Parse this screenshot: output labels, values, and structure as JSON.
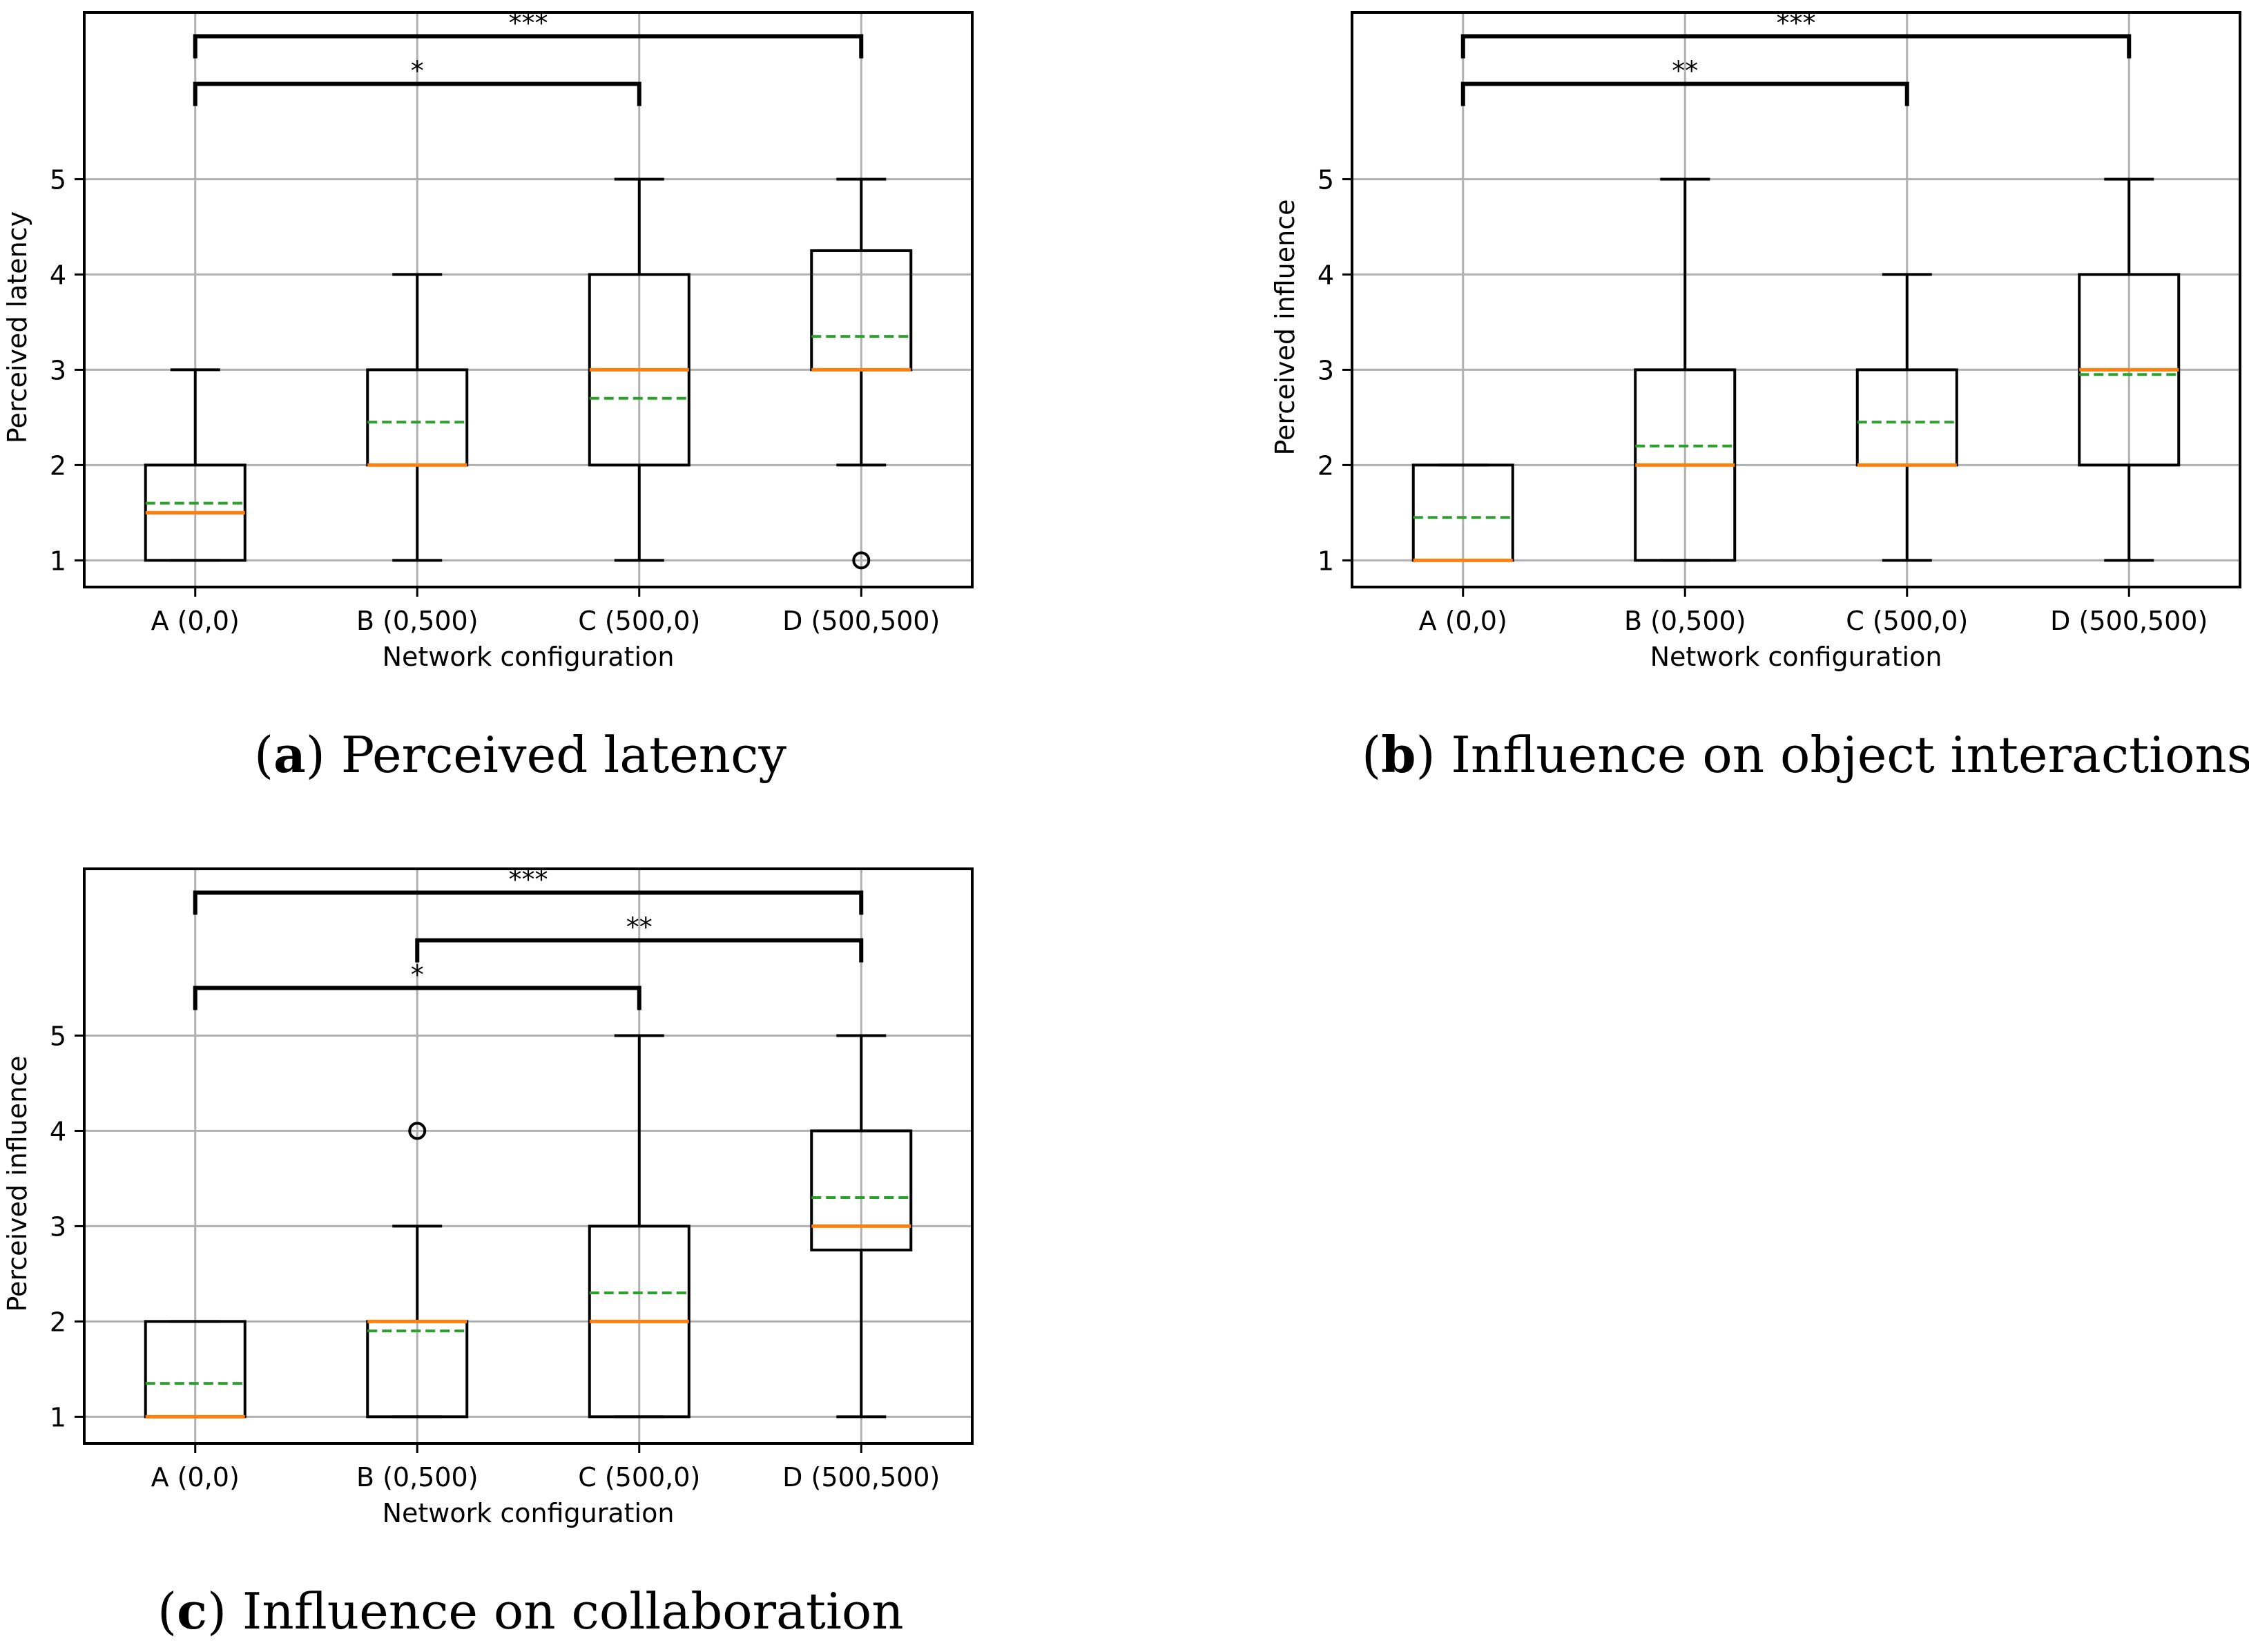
{
  "chart_data": [
    {
      "type": "box",
      "panel": "a",
      "caption_letter": "a",
      "caption_text": "Perceived latency",
      "xlabel": "Network configuration",
      "ylabel": "Perceived latency",
      "categories": [
        "A (0,0)",
        "B (0,500)",
        "C (500,0)",
        "D (500,500)"
      ],
      "yticks": [
        1,
        2,
        3,
        4,
        5
      ],
      "ylim": [
        0.72,
        6.75
      ],
      "grid": true,
      "boxes": [
        {
          "whisker_low": 1,
          "q1": 1,
          "median": 1.5,
          "q3": 2,
          "whisker_high": 3,
          "mean": 1.6,
          "outliers": []
        },
        {
          "whisker_low": 1,
          "q1": 2,
          "median": 2,
          "q3": 3,
          "whisker_high": 4,
          "mean": 2.45,
          "outliers": []
        },
        {
          "whisker_low": 1,
          "q1": 2,
          "median": 3,
          "q3": 4,
          "whisker_high": 5,
          "mean": 2.7,
          "outliers": []
        },
        {
          "whisker_low": 2,
          "q1": 3,
          "median": 3,
          "q3": 4.25,
          "whisker_high": 5,
          "mean": 3.35,
          "outliers": [
            1
          ]
        }
      ],
      "brackets": [
        {
          "from": 0,
          "to": 3,
          "level": 6.5,
          "label": "***"
        },
        {
          "from": 0,
          "to": 2,
          "level": 6.0,
          "label": "*"
        }
      ]
    },
    {
      "type": "box",
      "panel": "b",
      "caption_letter": "b",
      "caption_text": "Influence on object interactions",
      "xlabel": "Network configuration",
      "ylabel": "Perceived influence",
      "categories": [
        "A (0,0)",
        "B (0,500)",
        "C (500,0)",
        "D (500,500)"
      ],
      "yticks": [
        1,
        2,
        3,
        4,
        5
      ],
      "ylim": [
        0.72,
        6.75
      ],
      "grid": true,
      "boxes": [
        {
          "whisker_low": 1,
          "q1": 1,
          "median": 1,
          "q3": 2,
          "whisker_high": 2,
          "mean": 1.45,
          "outliers": []
        },
        {
          "whisker_low": 1,
          "q1": 1,
          "median": 2,
          "q3": 3,
          "whisker_high": 5,
          "mean": 2.2,
          "outliers": []
        },
        {
          "whisker_low": 1,
          "q1": 2,
          "median": 2,
          "q3": 3,
          "whisker_high": 4,
          "mean": 2.45,
          "outliers": []
        },
        {
          "whisker_low": 1,
          "q1": 2,
          "median": 3,
          "q3": 4,
          "whisker_high": 5,
          "mean": 2.95,
          "outliers": []
        }
      ],
      "brackets": [
        {
          "from": 0,
          "to": 3,
          "level": 6.5,
          "label": "***"
        },
        {
          "from": 0,
          "to": 2,
          "level": 6.0,
          "label": "**"
        }
      ]
    },
    {
      "type": "box",
      "panel": "c",
      "caption_letter": "c",
      "caption_text": "Influence on collaboration",
      "xlabel": "Network configuration",
      "ylabel": "Perceived influence",
      "categories": [
        "A (0,0)",
        "B (0,500)",
        "C (500,0)",
        "D (500,500)"
      ],
      "yticks": [
        1,
        2,
        3,
        4,
        5
      ],
      "ylim": [
        0.72,
        6.75
      ],
      "grid": true,
      "boxes": [
        {
          "whisker_low": 1,
          "q1": 1,
          "median": 1,
          "q3": 2,
          "whisker_high": 2,
          "mean": 1.35,
          "outliers": []
        },
        {
          "whisker_low": 1,
          "q1": 1,
          "median": 2,
          "q3": 2,
          "whisker_high": 3,
          "mean": 1.9,
          "outliers": [
            4
          ]
        },
        {
          "whisker_low": 1,
          "q1": 1,
          "median": 2,
          "q3": 3,
          "whisker_high": 5,
          "mean": 2.3,
          "outliers": []
        },
        {
          "whisker_low": 1,
          "q1": 2.75,
          "median": 3,
          "q3": 4,
          "whisker_high": 5,
          "mean": 3.3,
          "outliers": []
        }
      ],
      "brackets": [
        {
          "from": 0,
          "to": 3,
          "level": 6.5,
          "label": "***"
        },
        {
          "from": 1,
          "to": 3,
          "level": 6.0,
          "label": "**"
        },
        {
          "from": 0,
          "to": 2,
          "level": 5.5,
          "label": "*"
        }
      ]
    }
  ],
  "colors": {
    "median": "#ff7f0e",
    "mean": "#2ca02c",
    "box": "#000000",
    "grid": "#b0b0b0"
  }
}
